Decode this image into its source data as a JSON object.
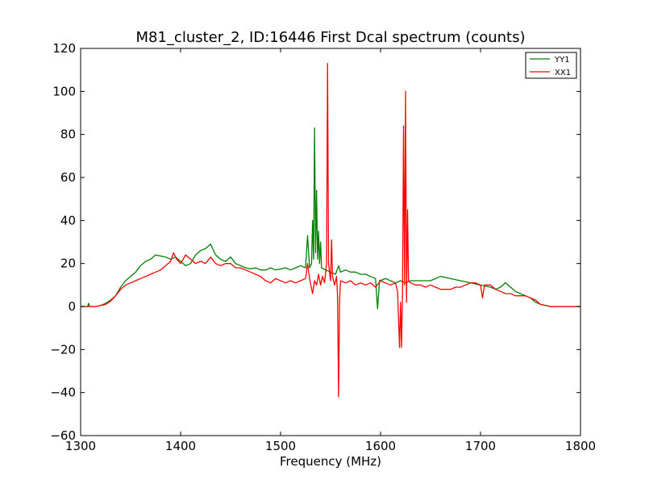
{
  "chart_data": {
    "type": "line",
    "title": "M81_cluster_2, ID:16446 First Dcal spectrum (counts)",
    "xlabel": "Frequency (MHz)",
    "ylabel": "",
    "xlim": [
      1300,
      1800
    ],
    "ylim": [
      -60,
      120
    ],
    "xticks": [
      1300,
      1400,
      1500,
      1600,
      1700,
      1800
    ],
    "yticks": [
      -60,
      -40,
      -20,
      0,
      20,
      40,
      60,
      80,
      100,
      120
    ],
    "grid": false,
    "legend_position": "top-right",
    "series": [
      {
        "name": "YY1",
        "color": "#008000",
        "points": [
          [
            1300,
            0
          ],
          [
            1307,
            0
          ],
          [
            1308,
            1.5
          ],
          [
            1309,
            0
          ],
          [
            1315,
            0
          ],
          [
            1320,
            0.5
          ],
          [
            1325,
            1.5
          ],
          [
            1330,
            3
          ],
          [
            1335,
            5
          ],
          [
            1340,
            9
          ],
          [
            1345,
            12
          ],
          [
            1350,
            14
          ],
          [
            1355,
            16
          ],
          [
            1360,
            19
          ],
          [
            1365,
            21
          ],
          [
            1370,
            22
          ],
          [
            1375,
            24
          ],
          [
            1380,
            23.5
          ],
          [
            1385,
            23
          ],
          [
            1390,
            22
          ],
          [
            1395,
            23
          ],
          [
            1400,
            21
          ],
          [
            1405,
            19
          ],
          [
            1410,
            20
          ],
          [
            1415,
            24
          ],
          [
            1420,
            26
          ],
          [
            1425,
            27
          ],
          [
            1430,
            29
          ],
          [
            1435,
            24
          ],
          [
            1440,
            22
          ],
          [
            1445,
            21
          ],
          [
            1450,
            23
          ],
          [
            1455,
            20
          ],
          [
            1460,
            19
          ],
          [
            1465,
            18
          ],
          [
            1470,
            17.5
          ],
          [
            1475,
            18
          ],
          [
            1480,
            17
          ],
          [
            1485,
            17
          ],
          [
            1490,
            18
          ],
          [
            1495,
            17
          ],
          [
            1500,
            17.5
          ],
          [
            1505,
            18
          ],
          [
            1510,
            17
          ],
          [
            1515,
            18
          ],
          [
            1520,
            19
          ],
          [
            1525,
            18
          ],
          [
            1527,
            33
          ],
          [
            1529,
            18
          ],
          [
            1531,
            20
          ],
          [
            1532,
            40
          ],
          [
            1533,
            22
          ],
          [
            1534,
            83
          ],
          [
            1535,
            25
          ],
          [
            1536,
            54
          ],
          [
            1537,
            22
          ],
          [
            1538,
            35
          ],
          [
            1539,
            20
          ],
          [
            1540,
            30
          ],
          [
            1541,
            18
          ],
          [
            1545,
            17
          ],
          [
            1550,
            16
          ],
          [
            1555,
            15
          ],
          [
            1558,
            19
          ],
          [
            1560,
            16
          ],
          [
            1565,
            17
          ],
          [
            1570,
            16
          ],
          [
            1575,
            16
          ],
          [
            1580,
            15
          ],
          [
            1585,
            15
          ],
          [
            1590,
            14
          ],
          [
            1595,
            13
          ],
          [
            1597,
            -1
          ],
          [
            1599,
            12
          ],
          [
            1605,
            13
          ],
          [
            1610,
            12
          ],
          [
            1615,
            11
          ],
          [
            1620,
            12
          ],
          [
            1625,
            11
          ],
          [
            1630,
            12
          ],
          [
            1640,
            12
          ],
          [
            1650,
            12
          ],
          [
            1660,
            14
          ],
          [
            1670,
            13
          ],
          [
            1680,
            12
          ],
          [
            1690,
            11
          ],
          [
            1700,
            10
          ],
          [
            1710,
            9
          ],
          [
            1715,
            8
          ],
          [
            1720,
            9
          ],
          [
            1725,
            11
          ],
          [
            1730,
            9
          ],
          [
            1735,
            7
          ],
          [
            1740,
            6
          ],
          [
            1745,
            5
          ],
          [
            1750,
            4
          ],
          [
            1755,
            2
          ],
          [
            1760,
            1
          ],
          [
            1765,
            0.5
          ],
          [
            1770,
            0
          ],
          [
            1780,
            0
          ],
          [
            1790,
            0
          ],
          [
            1800,
            0
          ]
        ]
      },
      {
        "name": "XX1",
        "color": "#ff0000",
        "points": [
          [
            1300,
            0
          ],
          [
            1315,
            0
          ],
          [
            1320,
            0.5
          ],
          [
            1325,
            1
          ],
          [
            1330,
            2.5
          ],
          [
            1335,
            5
          ],
          [
            1340,
            8
          ],
          [
            1345,
            10
          ],
          [
            1350,
            11
          ],
          [
            1355,
            12
          ],
          [
            1360,
            13
          ],
          [
            1365,
            14
          ],
          [
            1370,
            15
          ],
          [
            1375,
            16
          ],
          [
            1380,
            17
          ],
          [
            1385,
            19
          ],
          [
            1390,
            21
          ],
          [
            1393,
            25
          ],
          [
            1396,
            22
          ],
          [
            1400,
            20
          ],
          [
            1405,
            24
          ],
          [
            1410,
            22
          ],
          [
            1415,
            20
          ],
          [
            1420,
            21
          ],
          [
            1425,
            20
          ],
          [
            1430,
            23
          ],
          [
            1435,
            20
          ],
          [
            1440,
            19
          ],
          [
            1445,
            20
          ],
          [
            1450,
            20
          ],
          [
            1455,
            18
          ],
          [
            1460,
            18
          ],
          [
            1465,
            17
          ],
          [
            1470,
            16
          ],
          [
            1475,
            15
          ],
          [
            1480,
            14
          ],
          [
            1485,
            12
          ],
          [
            1490,
            11
          ],
          [
            1495,
            13
          ],
          [
            1500,
            12
          ],
          [
            1505,
            11
          ],
          [
            1510,
            12
          ],
          [
            1515,
            11
          ],
          [
            1520,
            12
          ],
          [
            1525,
            13
          ],
          [
            1527,
            20
          ],
          [
            1529,
            13
          ],
          [
            1532,
            6
          ],
          [
            1534,
            12
          ],
          [
            1536,
            10
          ],
          [
            1538,
            15
          ],
          [
            1540,
            10
          ],
          [
            1542,
            14
          ],
          [
            1544,
            11
          ],
          [
            1546,
            20
          ],
          [
            1547,
            113
          ],
          [
            1548,
            20
          ],
          [
            1550,
            12
          ],
          [
            1551,
            31
          ],
          [
            1552,
            14
          ],
          [
            1554,
            10
          ],
          [
            1556,
            14
          ],
          [
            1557,
            5
          ],
          [
            1558,
            -42
          ],
          [
            1559,
            3
          ],
          [
            1560,
            12
          ],
          [
            1565,
            11
          ],
          [
            1570,
            12
          ],
          [
            1575,
            10
          ],
          [
            1580,
            11
          ],
          [
            1585,
            10
          ],
          [
            1590,
            11
          ],
          [
            1595,
            9
          ],
          [
            1600,
            12
          ],
          [
            1605,
            11
          ],
          [
            1610,
            10
          ],
          [
            1615,
            11
          ],
          [
            1617,
            7
          ],
          [
            1619,
            -19
          ],
          [
            1620,
            2
          ],
          [
            1621,
            -19
          ],
          [
            1622,
            8
          ],
          [
            1623,
            84
          ],
          [
            1624,
            10
          ],
          [
            1625,
            100
          ],
          [
            1626,
            2
          ],
          [
            1627,
            45
          ],
          [
            1628,
            12
          ],
          [
            1630,
            11
          ],
          [
            1635,
            10
          ],
          [
            1640,
            10
          ],
          [
            1645,
            9
          ],
          [
            1650,
            10
          ],
          [
            1655,
            9
          ],
          [
            1660,
            8
          ],
          [
            1665,
            8
          ],
          [
            1670,
            8
          ],
          [
            1675,
            9
          ],
          [
            1680,
            9
          ],
          [
            1685,
            10
          ],
          [
            1690,
            11
          ],
          [
            1695,
            11
          ],
          [
            1700,
            10
          ],
          [
            1702,
            4
          ],
          [
            1704,
            10
          ],
          [
            1710,
            10
          ],
          [
            1715,
            8
          ],
          [
            1720,
            7
          ],
          [
            1725,
            6
          ],
          [
            1730,
            6
          ],
          [
            1735,
            5
          ],
          [
            1740,
            5
          ],
          [
            1745,
            5
          ],
          [
            1750,
            4
          ],
          [
            1755,
            3
          ],
          [
            1760,
            1
          ],
          [
            1765,
            0.5
          ],
          [
            1770,
            0
          ],
          [
            1780,
            0
          ],
          [
            1790,
            0
          ],
          [
            1800,
            0
          ]
        ]
      }
    ]
  }
}
